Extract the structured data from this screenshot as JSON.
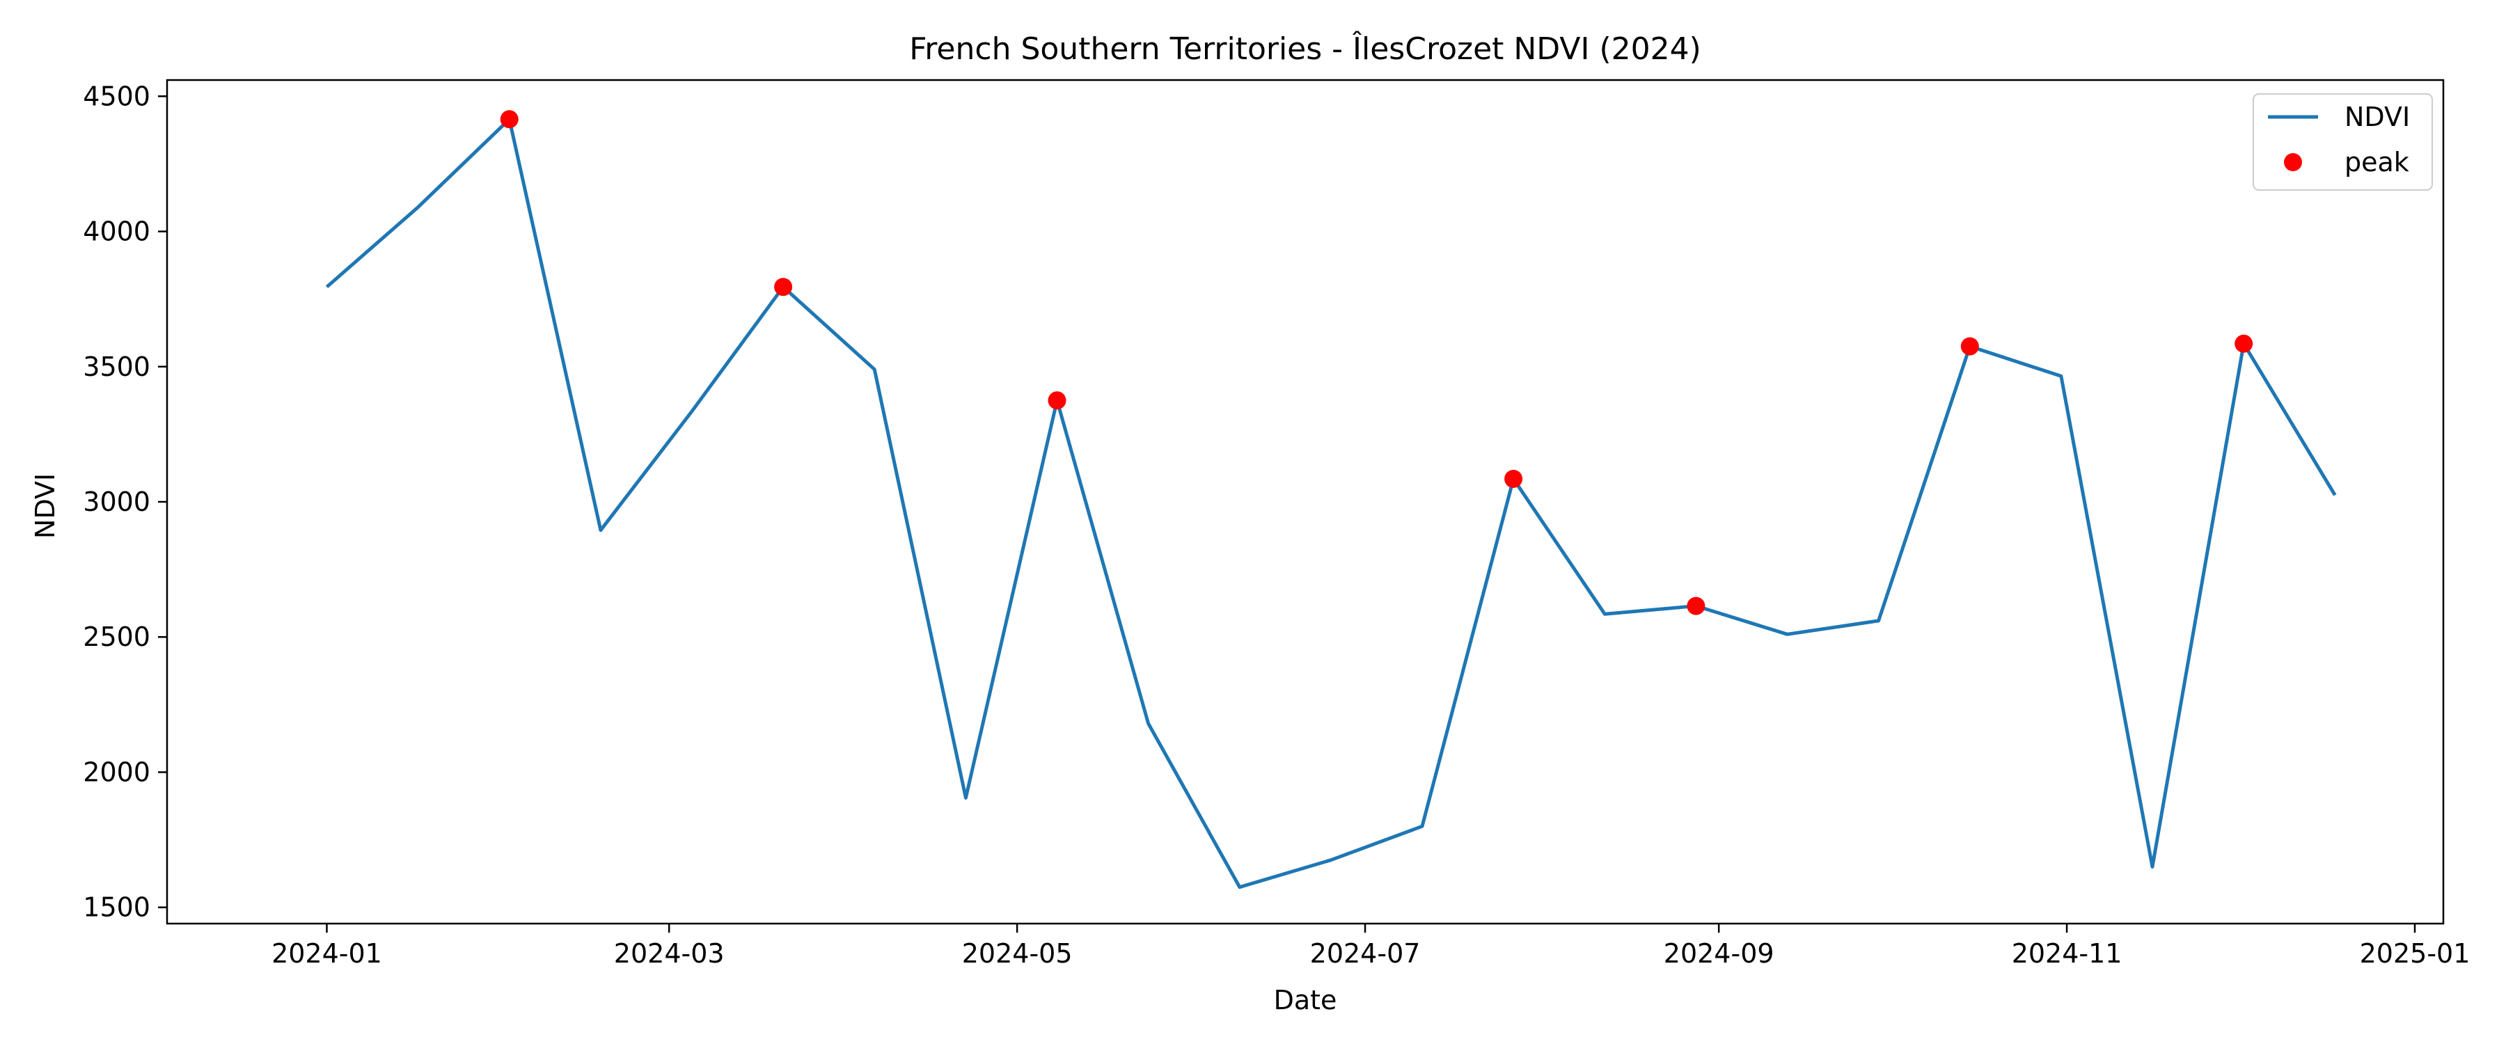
{
  "chart_data": {
    "type": "line",
    "title": "French Southern Territories - ÎlesCrozet NDVI (2024)",
    "xlabel": "Date",
    "ylabel": "NDVI",
    "xlim": [
      "2023-12-04",
      "2025-01-06"
    ],
    "ylim": [
      1440,
      4560
    ],
    "grid": false,
    "legend_position": "top-right",
    "x_ticks": [
      "2024-01-01",
      "2024-03-01",
      "2024-05-01",
      "2024-07-01",
      "2024-09-01",
      "2024-11-01",
      "2025-01-01"
    ],
    "x_tick_labels": [
      "2024-01",
      "2024-03",
      "2024-05",
      "2024-07",
      "2024-09",
      "2024-11",
      "2025-01"
    ],
    "y_ticks": [
      1500,
      2000,
      2500,
      3000,
      3500,
      4000,
      4500
    ],
    "series": [
      {
        "name": "NDVI",
        "mark": "line",
        "color": "#1f77b4",
        "points": [
          {
            "x": "2024-01-01",
            "y": 3795
          },
          {
            "x": "2024-01-17",
            "y": 4090
          },
          {
            "x": "2024-02-02",
            "y": 4415
          },
          {
            "x": "2024-02-18",
            "y": 2895
          },
          {
            "x": "2024-03-05",
            "y": 3335
          },
          {
            "x": "2024-03-21",
            "y": 3795
          },
          {
            "x": "2024-04-06",
            "y": 3490
          },
          {
            "x": "2024-04-22",
            "y": 1905
          },
          {
            "x": "2024-05-08",
            "y": 3375
          },
          {
            "x": "2024-05-24",
            "y": 2180
          },
          {
            "x": "2024-06-09",
            "y": 1575
          },
          {
            "x": "2024-06-25",
            "y": 1675
          },
          {
            "x": "2024-07-11",
            "y": 1800
          },
          {
            "x": "2024-07-27",
            "y": 3085
          },
          {
            "x": "2024-08-12",
            "y": 2585
          },
          {
            "x": "2024-08-28",
            "y": 2615
          },
          {
            "x": "2024-09-13",
            "y": 2510
          },
          {
            "x": "2024-09-29",
            "y": 2560
          },
          {
            "x": "2024-10-15",
            "y": 3575
          },
          {
            "x": "2024-10-31",
            "y": 3465
          },
          {
            "x": "2024-11-16",
            "y": 1650
          },
          {
            "x": "2024-12-02",
            "y": 3585
          },
          {
            "x": "2024-12-18",
            "y": 3025
          }
        ]
      },
      {
        "name": "peak",
        "mark": "scatter",
        "color": "#ff0000",
        "points": [
          {
            "x": "2024-02-02",
            "y": 4415
          },
          {
            "x": "2024-03-21",
            "y": 3795
          },
          {
            "x": "2024-05-08",
            "y": 3375
          },
          {
            "x": "2024-07-27",
            "y": 3085
          },
          {
            "x": "2024-08-28",
            "y": 2615
          },
          {
            "x": "2024-10-15",
            "y": 3575
          },
          {
            "x": "2024-12-02",
            "y": 3585
          }
        ]
      }
    ]
  }
}
